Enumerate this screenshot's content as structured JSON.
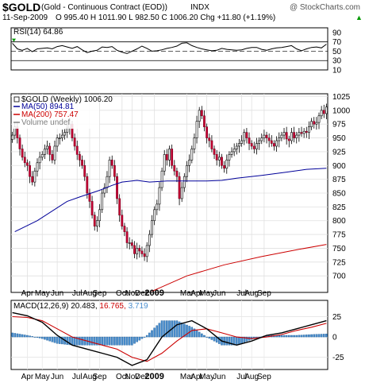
{
  "header": {
    "symbol": "$GOLD",
    "name": "(Gold - Continuous Contract (EOD))",
    "exchange": "INDX",
    "watermark": "@ StockCharts.com",
    "date": "11-Sep-2009",
    "quote": "O 995.40  H 1011.90  L 982.50  C 1006.20  Chg +11.80 (+1.19%)",
    "quote_arrow": "▲"
  },
  "chart_data": [
    {
      "type": "line",
      "panel": "rsi",
      "label": "RSI(14) 64.86",
      "ylim": [
        10,
        100
      ],
      "yticks": [
        10,
        30,
        50,
        70,
        90
      ],
      "reference_lines": [
        70,
        50,
        30
      ],
      "x": [
        0,
        2,
        4,
        6,
        8,
        10,
        12,
        14,
        16,
        18,
        20,
        22,
        24,
        26,
        28,
        30,
        32,
        34,
        36,
        38,
        40,
        42,
        44,
        46,
        48,
        50,
        52,
        54,
        56,
        58,
        60,
        62,
        64,
        66,
        68,
        70,
        72,
        74,
        76,
        78,
        80,
        82,
        84,
        86,
        88,
        90,
        92,
        94,
        96,
        98,
        100,
        102,
        104,
        106,
        108,
        110,
        112,
        114,
        116,
        118,
        120,
        122,
        124,
        126
      ],
      "values": [
        67,
        55,
        52,
        56,
        49,
        55,
        56,
        57,
        55,
        60,
        62,
        59,
        56,
        60,
        53,
        47,
        50,
        52,
        59,
        58,
        60,
        52,
        48,
        45,
        50,
        55,
        61,
        56,
        50,
        51,
        53,
        56,
        58,
        61,
        67,
        68,
        62,
        58,
        55,
        53,
        51,
        52,
        56,
        54,
        53,
        52,
        53,
        56,
        58,
        58,
        54,
        52,
        55,
        57,
        58,
        60,
        62,
        55,
        51,
        55,
        58,
        59,
        57,
        65
      ]
    },
    {
      "type": "candlestick",
      "panel": "price",
      "label": "$GOLD (Weekly) 1006.20",
      "ylim": [
        670,
        1030
      ],
      "yticks": [
        700,
        725,
        750,
        775,
        800,
        825,
        850,
        875,
        900,
        925,
        950,
        975,
        1000,
        1025
      ],
      "x_labels": [
        "Apr",
        "May",
        "Jun",
        "Jul",
        "Aug",
        "Sep",
        "Oct",
        "Nov",
        "Dec",
        "2009",
        "Mar",
        "Apr",
        "May",
        "Jun",
        "Jul",
        "Aug",
        "Sep"
      ],
      "x_label_positions": [
        6,
        12,
        18,
        26,
        31,
        35,
        44,
        48,
        52,
        57,
        70,
        74,
        78,
        83,
        92,
        96,
        101
      ],
      "weeks": 127,
      "legend": [
        {
          "label": "MA(50) 894.81",
          "color": "#000099"
        },
        {
          "label": "MA(200) 757.47",
          "color": "#cc0000"
        },
        {
          "label": "Volume undef",
          "color": "#808080"
        }
      ],
      "close": [
        955,
        970,
        950,
        930,
        915,
        905,
        900,
        880,
        870,
        890,
        905,
        915,
        920,
        930,
        935,
        920,
        910,
        935,
        950,
        950,
        955,
        960,
        968,
        975,
        950,
        935,
        920,
        910,
        900,
        880,
        850,
        835,
        810,
        790,
        800,
        820,
        850,
        860,
        880,
        910,
        900,
        880,
        840,
        810,
        790,
        780,
        760,
        760,
        755,
        740,
        750,
        745,
        740,
        735,
        755,
        775,
        800,
        820,
        830,
        860,
        890,
        920,
        910,
        930,
        900,
        890,
        880,
        840,
        860,
        880,
        900,
        910,
        930,
        950,
        980,
        1000,
        990,
        970,
        950,
        945,
        930,
        920,
        910,
        915,
        900,
        895,
        910,
        920,
        925,
        930,
        935,
        940,
        945,
        960,
        950,
        940,
        935,
        930,
        940,
        945,
        950,
        955,
        950,
        945,
        940,
        935,
        945,
        950,
        955,
        960,
        948,
        945,
        960,
        950,
        955,
        960,
        958,
        962,
        960,
        970,
        980,
        975,
        978,
        990,
        1000,
        994,
        1006
      ],
      "ma50": {
        "x": [
          1,
          10,
          22,
          27,
          35,
          40,
          44,
          50,
          55,
          62,
          68,
          78,
          84,
          90,
          100,
          110,
          118,
          126
        ],
        "values": [
          780,
          800,
          835,
          843,
          855,
          864,
          870,
          873,
          870,
          872,
          872,
          872,
          873,
          877,
          882,
          888,
          893,
          895
        ]
      },
      "ma200": {
        "x": [
          56,
          70,
          85,
          100,
          115,
          126
        ],
        "values": [
          672,
          700,
          720,
          735,
          748,
          757
        ]
      }
    },
    {
      "type": "line",
      "panel": "macd",
      "label_name": "MACD(12,26,9)",
      "macd_value": "20.483",
      "signal_value": "16.765",
      "histogram_value": "3.719",
      "colors": {
        "macd": "#000000",
        "signal": "#cc0000",
        "histogram": "#4b8fcf"
      },
      "ylim": [
        -40,
        45
      ],
      "yticks": [
        -25,
        0,
        25
      ],
      "x": [
        0,
        6,
        12,
        18,
        24,
        30,
        36,
        42,
        48,
        54,
        60,
        66,
        72,
        78,
        84,
        90,
        96,
        102,
        108,
        114,
        120,
        126
      ],
      "macd": [
        30,
        26,
        18,
        2,
        -10,
        -15,
        -20,
        -25,
        -35,
        -28,
        0,
        15,
        20,
        10,
        -5,
        -10,
        -5,
        2,
        5,
        10,
        15,
        20
      ],
      "signal": [
        25,
        24,
        20,
        10,
        0,
        -5,
        -10,
        -15,
        -25,
        -30,
        -20,
        -5,
        8,
        10,
        5,
        0,
        -2,
        0,
        3,
        8,
        12,
        16.8
      ],
      "histogram": [
        5,
        2,
        -2,
        -8,
        -10,
        -10,
        -10,
        -10,
        -10,
        2,
        20,
        20,
        12,
        0,
        -10,
        -10,
        -3,
        2,
        2,
        2,
        3,
        3.7
      ]
    }
  ]
}
